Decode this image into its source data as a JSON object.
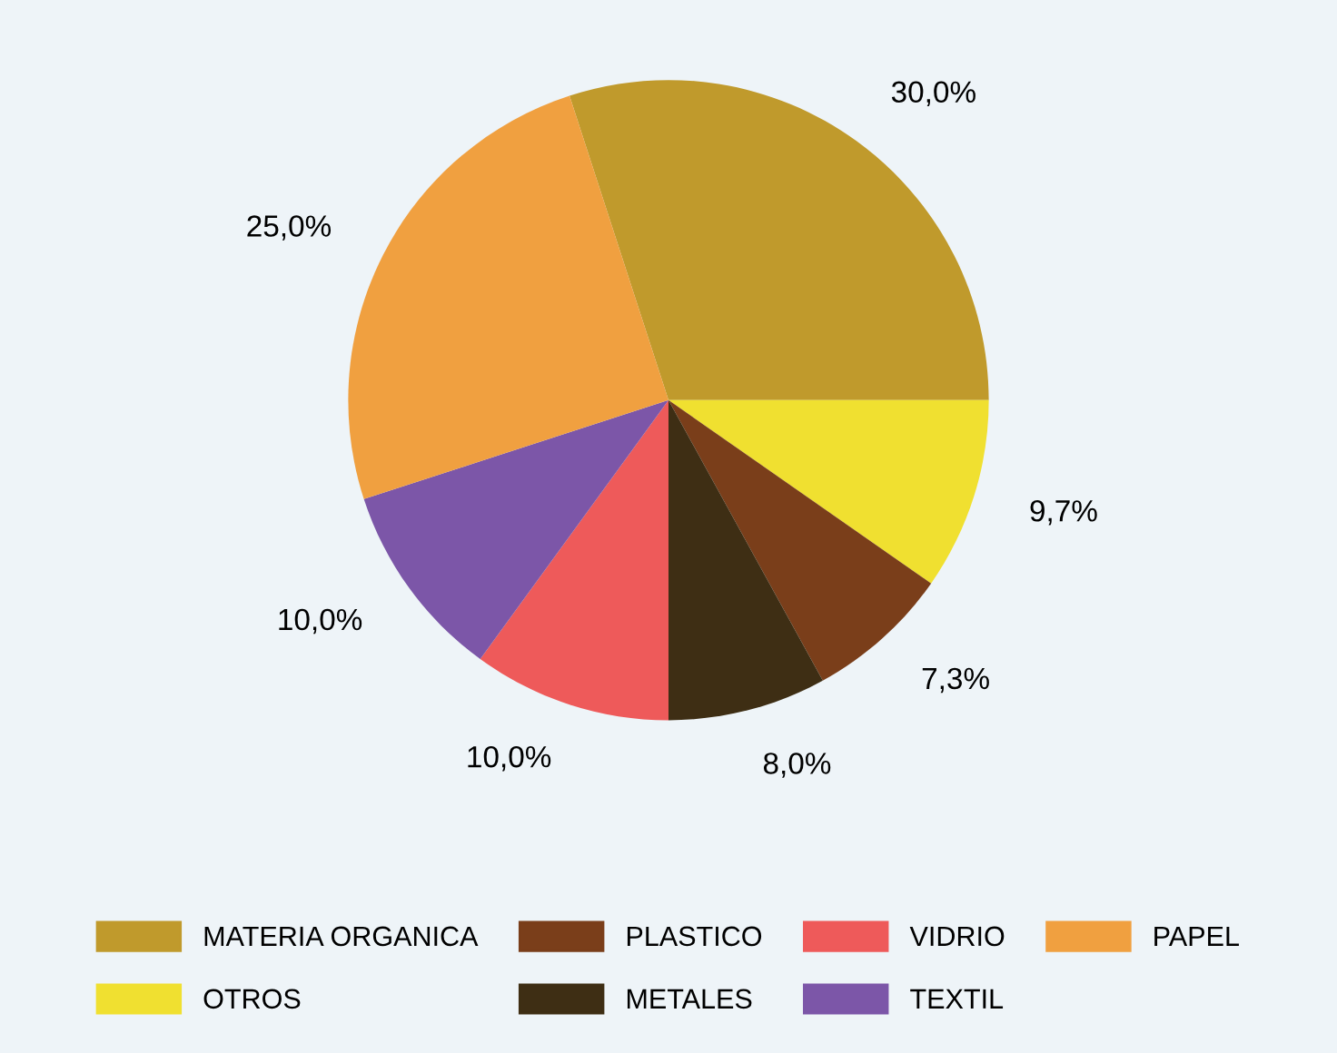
{
  "chart_data": {
    "type": "pie",
    "categories": [
      "MATERIA ORGANICA",
      "OTROS",
      "PLASTICO",
      "METALES",
      "VIDRIO",
      "TEXTIL",
      "PAPEL"
    ],
    "values": [
      30.0,
      9.7,
      7.3,
      8.0,
      10.0,
      10.0,
      25.0
    ],
    "colors": [
      "#c09a2c",
      "#f0e030",
      "#7a3e1a",
      "#3e2e14",
      "#ee5a5a",
      "#7c56a8",
      "#f0a040"
    ],
    "value_labels": [
      "30,0%",
      "9,7%",
      "7,3%",
      "8,0%",
      "10,0%",
      "10,0%",
      "25,0%"
    ],
    "legend": "bottom"
  }
}
